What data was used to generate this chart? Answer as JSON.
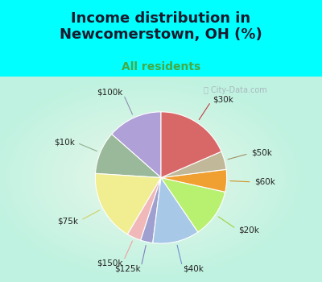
{
  "title": "Income distribution in\nNewcomerstown, OH (%)",
  "subtitle": "All residents",
  "labels": [
    "$100k",
    "$10k",
    "$75k",
    "$150k",
    "$125k",
    "$40k",
    "$20k",
    "$60k",
    "$50k",
    "$30k"
  ],
  "values": [
    13.5,
    10.5,
    17.5,
    3.5,
    3.0,
    11.5,
    12.0,
    5.5,
    4.5,
    18.5
  ],
  "colors": [
    "#b0a0d8",
    "#9ab89a",
    "#f0ee90",
    "#f0b8b8",
    "#a0a0d0",
    "#a8c8e8",
    "#b8f070",
    "#f0a030",
    "#c0b898",
    "#d86868"
  ],
  "background_top": "#00ffff",
  "wedge_linewidth": 0.8,
  "wedge_linecolor": "white",
  "startangle": 90,
  "label_fontsize": 7.5,
  "label_color": "#222222",
  "line_colors": [
    "#9090b0",
    "#90b090",
    "#d0d060",
    "#f0a0a0",
    "#8080c0",
    "#7090d0",
    "#a0d040",
    "#d09020",
    "#a09060",
    "#c04040"
  ],
  "title_fontsize": 13,
  "subtitle_fontsize": 10,
  "title_color": "#1a1a2e",
  "subtitle_color": "#44aa44"
}
